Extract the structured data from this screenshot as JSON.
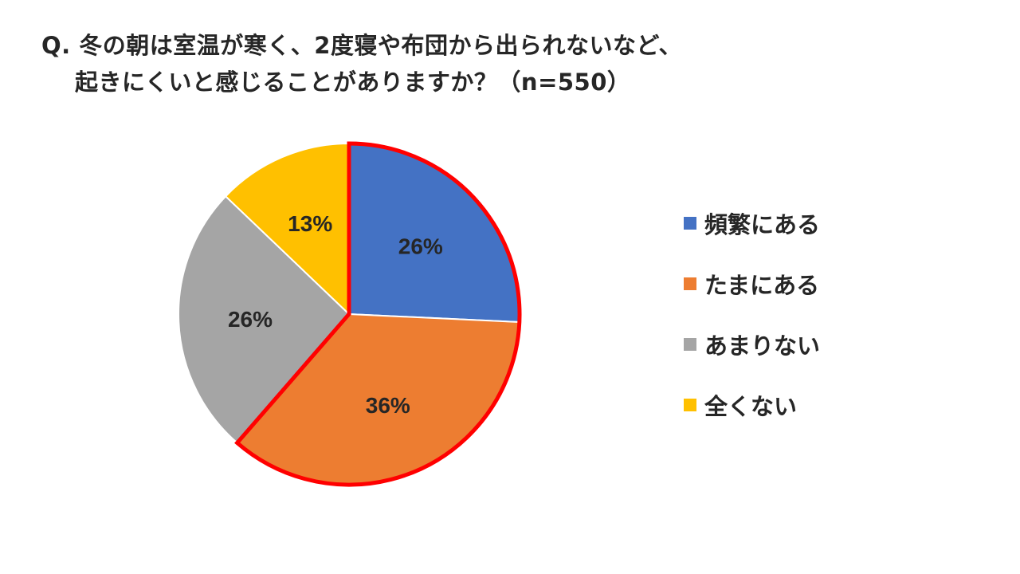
{
  "title": {
    "line1": "Q. 冬の朝は室温が寒く、2度寝や布団から出られないなど、",
    "line2": "起きにくいと感じることがありますか？（n=550）"
  },
  "chart_data": {
    "type": "pie",
    "title": "Q. 冬の朝は室温が寒く、2度寝や布団から出られないなど、起きにくいと感じることがありますか？（n=550）",
    "categories": [
      "頻繁にある",
      "たまにある",
      "あまりない",
      "全くない"
    ],
    "values": [
      26,
      36,
      26,
      13
    ],
    "labels": [
      "26%",
      "36%",
      "26%",
      "13%"
    ],
    "colors": [
      "#4472C4",
      "#ED7D31",
      "#A5A5A5",
      "#FFC000"
    ],
    "highlight": {
      "categories": [
        "頻繁にある",
        "たまにある"
      ],
      "color": "#FF0000"
    },
    "start_angle": "12 o'clock",
    "direction": "clockwise",
    "legend_position": "right"
  }
}
